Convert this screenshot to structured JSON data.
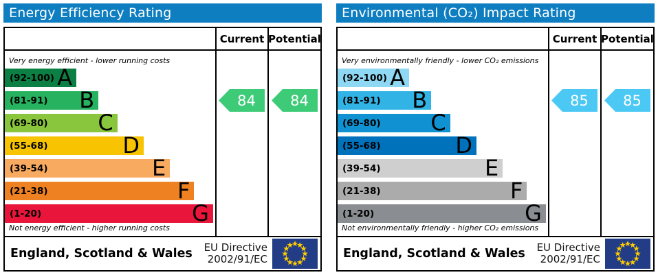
{
  "charts": [
    {
      "title": "Energy Efficiency Rating",
      "header_color": "#0f7ec1",
      "col_current": "Current",
      "col_potential": "Potential",
      "top_caption": "Very energy efficient - lower running costs",
      "bottom_caption": "Not energy efficient - higher running costs",
      "bands": [
        {
          "range": "(92-100)",
          "letter": "A",
          "color": "#0c8044",
          "width_pct": 34
        },
        {
          "range": "(81-91)",
          "letter": "B",
          "color": "#27b25f",
          "width_pct": 44.5
        },
        {
          "range": "(69-80)",
          "letter": "C",
          "color": "#8ac53e",
          "width_pct": 53.5
        },
        {
          "range": "(55-68)",
          "letter": "D",
          "color": "#f8c300",
          "width_pct": 66
        },
        {
          "range": "(39-54)",
          "letter": "E",
          "color": "#f9aa61",
          "width_pct": 78.5
        },
        {
          "range": "(21-38)",
          "letter": "F",
          "color": "#ee8122",
          "width_pct": 90
        },
        {
          "range": "(1-20)",
          "letter": "G",
          "color": "#e9153b",
          "width_pct": 99
        }
      ],
      "current": {
        "value": "84",
        "band_index": 1,
        "color": "#3ecb78"
      },
      "potential": {
        "value": "84",
        "band_index": 1,
        "color": "#3ecb78"
      },
      "footer": {
        "region": "England, Scotland & Wales",
        "directive_line1": "EU Directive",
        "directive_line2": "2002/91/EC"
      },
      "eu_flag": {
        "bg": "#223c85",
        "stars": "#ffcc00"
      }
    },
    {
      "title": "Environmental (CO₂) Impact Rating",
      "header_color": "#0f7ec1",
      "col_current": "Current",
      "col_potential": "Potential",
      "top_caption": "Very environmentally friendly - lower CO₂ emissions",
      "bottom_caption": "Not environmentally friendly - higher CO₂ emissions",
      "bands": [
        {
          "range": "(92-100)",
          "letter": "A",
          "color": "#8ed8f3",
          "width_pct": 34
        },
        {
          "range": "(81-91)",
          "letter": "B",
          "color": "#32b3e6",
          "width_pct": 44.5
        },
        {
          "range": "(69-80)",
          "letter": "C",
          "color": "#1092d2",
          "width_pct": 53.5
        },
        {
          "range": "(55-68)",
          "letter": "D",
          "color": "#0072bc",
          "width_pct": 66
        },
        {
          "range": "(39-54)",
          "letter": "E",
          "color": "#cfcfcf",
          "width_pct": 78.5
        },
        {
          "range": "(21-38)",
          "letter": "F",
          "color": "#ababab",
          "width_pct": 90
        },
        {
          "range": "(1-20)",
          "letter": "G",
          "color": "#8a8d91",
          "width_pct": 99
        }
      ],
      "current": {
        "value": "85",
        "band_index": 1,
        "color": "#4cc8f4"
      },
      "potential": {
        "value": "85",
        "band_index": 1,
        "color": "#4cc8f4"
      },
      "footer": {
        "region": "England, Scotland & Wales",
        "directive_line1": "EU Directive",
        "directive_line2": "2002/91/EC"
      },
      "eu_flag": {
        "bg": "#223c85",
        "stars": "#ffcc00"
      }
    }
  ],
  "chart_data": [
    {
      "type": "bar",
      "title": "Energy Efficiency Rating",
      "categories": [
        "A (92-100)",
        "B (81-91)",
        "C (69-80)",
        "D (55-68)",
        "E (39-54)",
        "F (21-38)",
        "G (1-20)"
      ],
      "scale": [
        1,
        100
      ],
      "current": 84,
      "current_band": "B",
      "potential": 84,
      "potential_band": "B",
      "top_caption": "Very energy efficient - lower running costs",
      "bottom_caption": "Not energy efficient - higher running costs",
      "legend_position": "columns right: Current, Potential"
    },
    {
      "type": "bar",
      "title": "Environmental (CO₂) Impact Rating",
      "categories": [
        "A (92-100)",
        "B (81-91)",
        "C (69-80)",
        "D (55-68)",
        "E (39-54)",
        "F (21-38)",
        "G (1-20)"
      ],
      "scale": [
        1,
        100
      ],
      "current": 85,
      "current_band": "B",
      "potential": 85,
      "potential_band": "B",
      "top_caption": "Very environmentally friendly - lower CO₂ emissions",
      "bottom_caption": "Not environmentally friendly - higher CO₂ emissions",
      "legend_position": "columns right: Current, Potential"
    }
  ]
}
